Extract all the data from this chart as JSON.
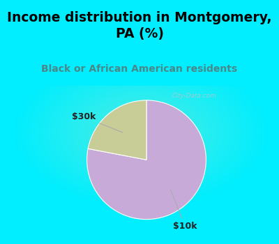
{
  "title": "Income distribution in Montgomery,\nPA (%)",
  "subtitle": "Black or African American residents",
  "slices": [
    {
      "label": "$10k",
      "value": 78,
      "color": "#c8aad8"
    },
    {
      "label": "$30k",
      "value": 22,
      "color": "#c8cc96"
    }
  ],
  "title_color": "#000000",
  "subtitle_color": "#4a8888",
  "title_fontsize": 13.5,
  "subtitle_fontsize": 10,
  "bg_cyan": "#00eeff",
  "bg_chart": "#d8ecd8",
  "watermark": "City-Data.com",
  "start_angle": 90,
  "annotation_color": "#222222",
  "annotation_fontsize": 9,
  "arrow_color": "#aaaaaa"
}
